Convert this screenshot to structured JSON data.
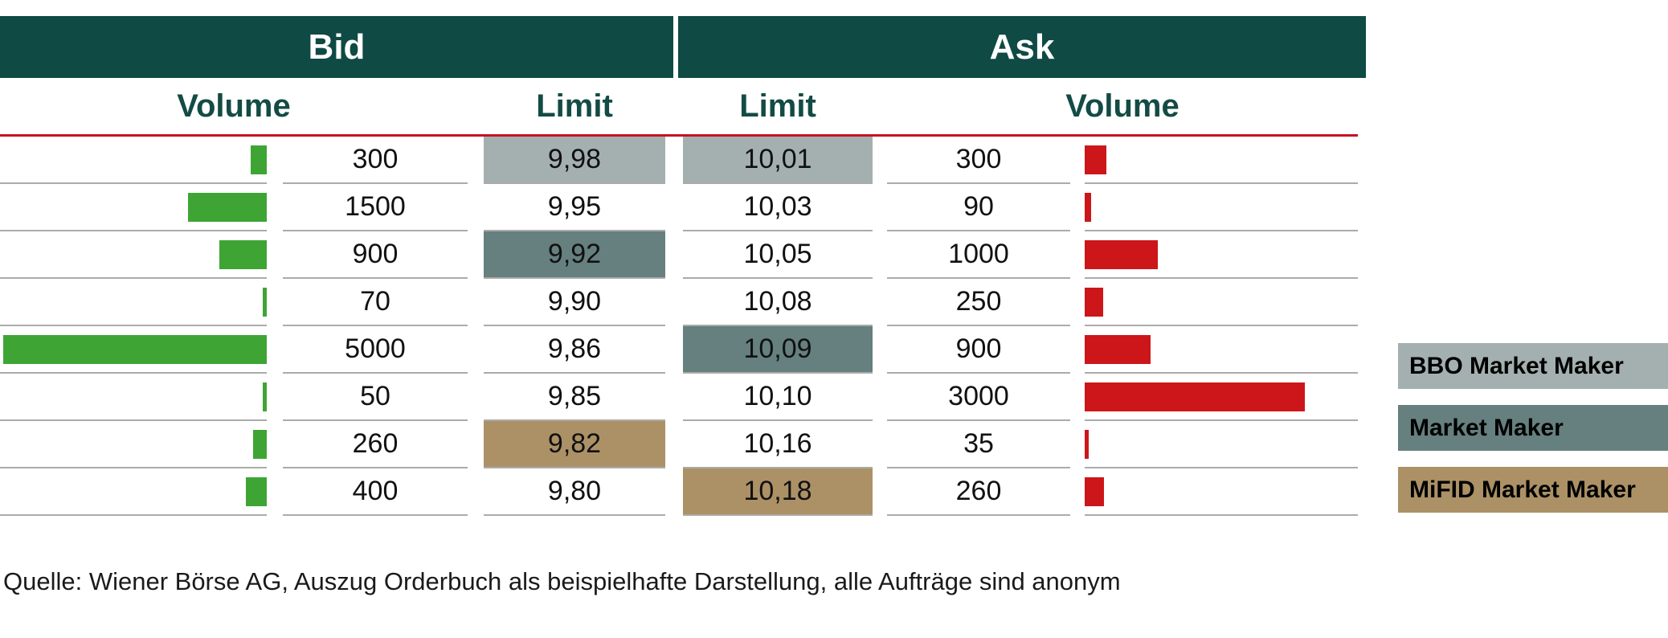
{
  "header": {
    "bid_label": "Bid",
    "ask_label": "Ask",
    "bid_volume_label": "Volume",
    "bid_limit_label": "Limit",
    "ask_limit_label": "Limit",
    "ask_volume_label": "Volume"
  },
  "colors": {
    "header_teal": "#0F4A44",
    "subheader_text": "#134B45",
    "bid_bar_green": "#3EA535",
    "ask_bar_red": "#CC1619",
    "divider_red": "#C51224",
    "row_line_gray": "#ABABAB"
  },
  "legend": {
    "items": [
      {
        "key": "bbo",
        "label": "BBO Market Maker",
        "color": "#A3B0AF"
      },
      {
        "key": "mm",
        "label": "Market Maker",
        "color": "#65807E"
      },
      {
        "key": "mifid",
        "label": "MiFID Market Maker",
        "color": "#AC9166"
      }
    ]
  },
  "chart_data": {
    "type": "table",
    "title": "Orderbuch (order book) bid/ask depth example",
    "columns": [
      "Bid Volume",
      "Bid Limit",
      "Ask Limit",
      "Ask Volume"
    ],
    "bid_max_volume": 5000,
    "ask_max_volume": 3000,
    "rows": [
      {
        "bid_volume": 300,
        "bid_limit": "9,98",
        "bid_marker": "bbo",
        "ask_limit": "10,01",
        "ask_marker": "bbo",
        "ask_volume": 300
      },
      {
        "bid_volume": 1500,
        "bid_limit": "9,95",
        "bid_marker": null,
        "ask_limit": "10,03",
        "ask_marker": null,
        "ask_volume": 90
      },
      {
        "bid_volume": 900,
        "bid_limit": "9,92",
        "bid_marker": "mm",
        "ask_limit": "10,05",
        "ask_marker": null,
        "ask_volume": 1000
      },
      {
        "bid_volume": 70,
        "bid_limit": "9,90",
        "bid_marker": null,
        "ask_limit": "10,08",
        "ask_marker": null,
        "ask_volume": 250
      },
      {
        "bid_volume": 5000,
        "bid_limit": "9,86",
        "bid_marker": null,
        "ask_limit": "10,09",
        "ask_marker": "mm",
        "ask_volume": 900
      },
      {
        "bid_volume": 50,
        "bid_limit": "9,85",
        "bid_marker": null,
        "ask_limit": "10,10",
        "ask_marker": null,
        "ask_volume": 3000
      },
      {
        "bid_volume": 260,
        "bid_limit": "9,82",
        "bid_marker": "mifid",
        "ask_limit": "10,16",
        "ask_marker": null,
        "ask_volume": 35
      },
      {
        "bid_volume": 400,
        "bid_limit": "9,80",
        "bid_marker": null,
        "ask_limit": "10,18",
        "ask_marker": "mifid",
        "ask_volume": 260
      }
    ]
  },
  "footer": {
    "source_note": "Quelle: Wiener Börse AG, Auszug Orderbuch als beispielhafte Darstellung, alle Aufträge sind anonym"
  }
}
